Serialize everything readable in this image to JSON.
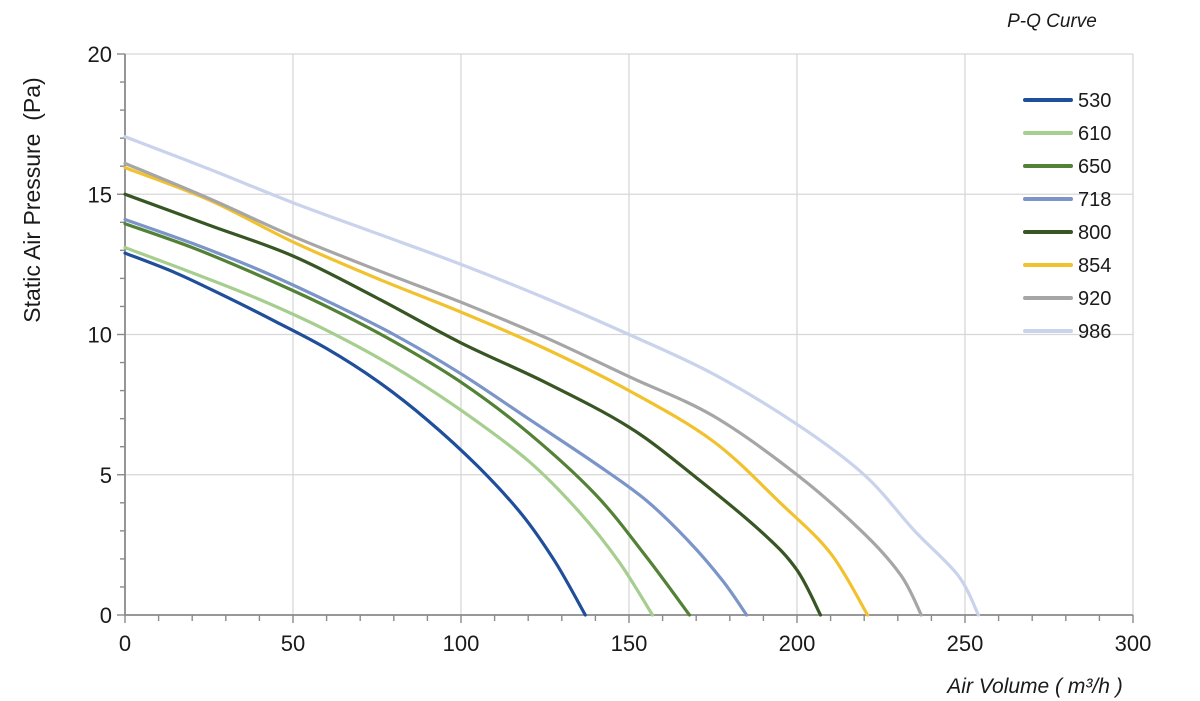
{
  "chart_data": {
    "type": "line",
    "title": "P-Q Curve",
    "xlabel": "Air Volume ( m³/h )",
    "ylabel": "Static Air Pressure  (Pa)",
    "xlim": [
      0,
      300
    ],
    "ylim": [
      0,
      20
    ],
    "x_ticks": [
      0,
      50,
      100,
      150,
      200,
      250,
      300
    ],
    "y_ticks": [
      0,
      5,
      10,
      15,
      20
    ],
    "x_minor_step": 10,
    "y_minor_step": 1,
    "grid": true,
    "legend_position": "top-right",
    "series": [
      {
        "name": "530",
        "color": "#1F4E9B",
        "points": [
          [
            0,
            12.9
          ],
          [
            15,
            12.2
          ],
          [
            30,
            11.35
          ],
          [
            45,
            10.45
          ],
          [
            60,
            9.5
          ],
          [
            75,
            8.35
          ],
          [
            90,
            6.95
          ],
          [
            105,
            5.3
          ],
          [
            118,
            3.6
          ],
          [
            128,
            1.9
          ],
          [
            137,
            0
          ]
        ]
      },
      {
        "name": "610",
        "color": "#A6CE8E",
        "points": [
          [
            0,
            13.1
          ],
          [
            20,
            12.2
          ],
          [
            40,
            11.25
          ],
          [
            60,
            10.15
          ],
          [
            80,
            8.85
          ],
          [
            100,
            7.3
          ],
          [
            120,
            5.5
          ],
          [
            135,
            3.7
          ],
          [
            147,
            1.9
          ],
          [
            157,
            0
          ]
        ]
      },
      {
        "name": "650",
        "color": "#538135",
        "points": [
          [
            0,
            13.95
          ],
          [
            20,
            13.1
          ],
          [
            40,
            12.1
          ],
          [
            60,
            11.0
          ],
          [
            80,
            9.75
          ],
          [
            100,
            8.3
          ],
          [
            120,
            6.5
          ],
          [
            140,
            4.3
          ],
          [
            155,
            2.1
          ],
          [
            168,
            0
          ]
        ]
      },
      {
        "name": "718",
        "color": "#7B95C9",
        "points": [
          [
            0,
            14.1
          ],
          [
            20,
            13.25
          ],
          [
            40,
            12.3
          ],
          [
            60,
            11.2
          ],
          [
            80,
            10.0
          ],
          [
            100,
            8.6
          ],
          [
            120,
            7.0
          ],
          [
            140,
            5.4
          ],
          [
            155,
            4.1
          ],
          [
            168,
            2.6
          ],
          [
            178,
            1.2
          ],
          [
            185,
            0
          ]
        ]
      },
      {
        "name": "800",
        "color": "#375623",
        "points": [
          [
            0,
            15.0
          ],
          [
            25,
            13.9
          ],
          [
            50,
            12.8
          ],
          [
            75,
            11.3
          ],
          [
            100,
            9.7
          ],
          [
            125,
            8.3
          ],
          [
            150,
            6.7
          ],
          [
            170,
            4.9
          ],
          [
            190,
            2.9
          ],
          [
            200,
            1.6
          ],
          [
            207,
            0
          ]
        ]
      },
      {
        "name": "854",
        "color": "#F2C12E",
        "points": [
          [
            0,
            15.95
          ],
          [
            25,
            14.8
          ],
          [
            50,
            13.3
          ],
          [
            75,
            12.0
          ],
          [
            100,
            10.8
          ],
          [
            125,
            9.5
          ],
          [
            150,
            8.0
          ],
          [
            175,
            6.2
          ],
          [
            195,
            4.0
          ],
          [
            210,
            2.2
          ],
          [
            221,
            0
          ]
        ]
      },
      {
        "name": "920",
        "color": "#A6A6A6",
        "points": [
          [
            0,
            16.1
          ],
          [
            25,
            14.85
          ],
          [
            50,
            13.5
          ],
          [
            75,
            12.3
          ],
          [
            100,
            11.15
          ],
          [
            125,
            9.9
          ],
          [
            150,
            8.5
          ],
          [
            175,
            7.1
          ],
          [
            200,
            5.0
          ],
          [
            220,
            2.9
          ],
          [
            231,
            1.4
          ],
          [
            237,
            0
          ]
        ]
      },
      {
        "name": "986",
        "color": "#C9D3EC",
        "points": [
          [
            0,
            17.05
          ],
          [
            25,
            15.9
          ],
          [
            50,
            14.7
          ],
          [
            75,
            13.6
          ],
          [
            100,
            12.5
          ],
          [
            125,
            11.3
          ],
          [
            150,
            10.0
          ],
          [
            175,
            8.6
          ],
          [
            200,
            6.8
          ],
          [
            220,
            5.0
          ],
          [
            235,
            3.0
          ],
          [
            248,
            1.4
          ],
          [
            254,
            0
          ]
        ]
      }
    ]
  },
  "colors": {
    "grid": "#D7D7D7",
    "axis": "#8A8A8A",
    "text": "#1A1A1A",
    "background": "#FFFFFF"
  }
}
